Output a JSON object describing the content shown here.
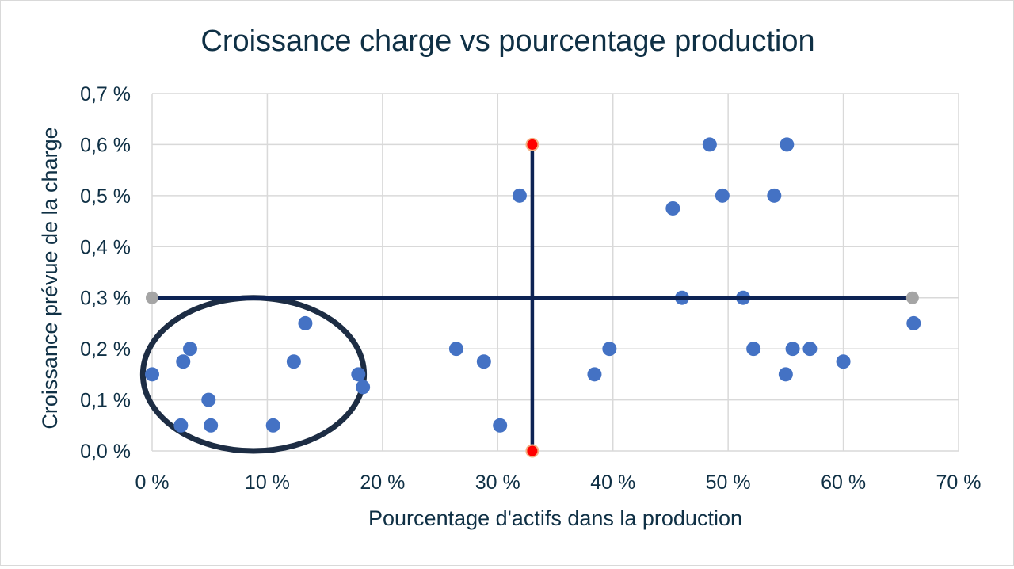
{
  "chart_data": {
    "type": "scatter",
    "title": "Croissance charge vs pourcentage production",
    "xlabel": "Pourcentage d'actifs dans la production",
    "ylabel": "Croissance prévue de la charge",
    "xlim": [
      0,
      70
    ],
    "ylim": [
      0,
      0.7
    ],
    "x_ticks": [
      "0 %",
      "10 %",
      "20 %",
      "30 %",
      "40 %",
      "50 %",
      "60 %",
      "70 %"
    ],
    "y_ticks": [
      "0,0 %",
      "0,1 %",
      "0,2 %",
      "0,3 %",
      "0,4 %",
      "0,5 %",
      "0,6 %",
      "0,7 %"
    ],
    "grid": true,
    "legend": "none",
    "colors": {
      "points": "#4472c4",
      "reference_lines": "#0d2354",
      "vertical_endpoints": "#ff0000",
      "vertical_endpoint_outline": "#f4b183",
      "horizontal_endpoints": "#a5a5a5",
      "ellipse": "#1d2d44",
      "grid": "#d9d9d9",
      "text": "#0f3045"
    },
    "points": [
      {
        "x": 0.0,
        "y": 0.15
      },
      {
        "x": 2.5,
        "y": 0.05
      },
      {
        "x": 2.7,
        "y": 0.175
      },
      {
        "x": 3.3,
        "y": 0.2
      },
      {
        "x": 4.9,
        "y": 0.1
      },
      {
        "x": 5.1,
        "y": 0.05
      },
      {
        "x": 10.5,
        "y": 0.05
      },
      {
        "x": 12.3,
        "y": 0.175
      },
      {
        "x": 13.3,
        "y": 0.25
      },
      {
        "x": 17.9,
        "y": 0.15
      },
      {
        "x": 18.3,
        "y": 0.125
      },
      {
        "x": 26.4,
        "y": 0.2
      },
      {
        "x": 28.8,
        "y": 0.175
      },
      {
        "x": 30.2,
        "y": 0.05
      },
      {
        "x": 31.9,
        "y": 0.5
      },
      {
        "x": 38.4,
        "y": 0.15
      },
      {
        "x": 39.7,
        "y": 0.2
      },
      {
        "x": 45.2,
        "y": 0.475
      },
      {
        "x": 46.0,
        "y": 0.3
      },
      {
        "x": 48.4,
        "y": 0.6
      },
      {
        "x": 49.5,
        "y": 0.5
      },
      {
        "x": 51.3,
        "y": 0.3
      },
      {
        "x": 52.2,
        "y": 0.2
      },
      {
        "x": 54.0,
        "y": 0.5
      },
      {
        "x": 55.0,
        "y": 0.15
      },
      {
        "x": 55.1,
        "y": 0.6
      },
      {
        "x": 55.6,
        "y": 0.2
      },
      {
        "x": 57.1,
        "y": 0.2
      },
      {
        "x": 60.0,
        "y": 0.175
      },
      {
        "x": 66.1,
        "y": 0.25
      }
    ],
    "reference_lines": [
      {
        "orientation": "vertical",
        "x": 33.0,
        "y_from": 0.0,
        "y_to": 0.6
      },
      {
        "orientation": "horizontal",
        "y": 0.3,
        "x_from": 0.0,
        "x_to": 66.0
      }
    ],
    "highlight_ellipse": {
      "cx": 8.8,
      "cy": 0.15,
      "rx": 9.6,
      "ry": 0.15
    }
  }
}
